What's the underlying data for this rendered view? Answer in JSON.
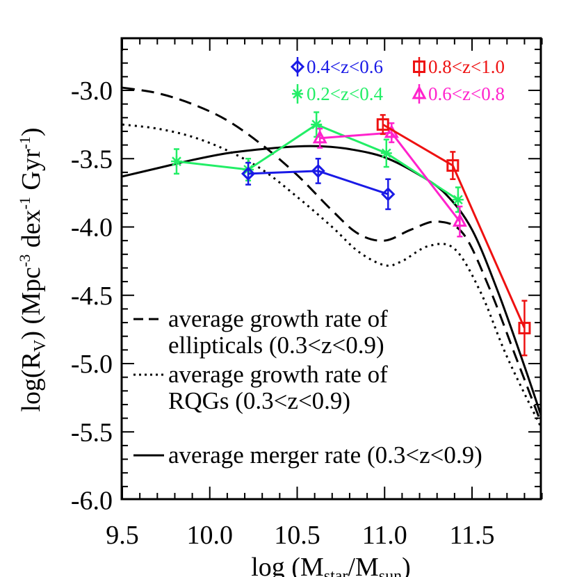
{
  "chart_data": {
    "type": "line",
    "title": "",
    "xlabel": {
      "main": "log (M",
      "sub1": "star",
      "mid": "/M",
      "sub2": "sun",
      "end": ")"
    },
    "ylabel": {
      "pre": "log(R",
      "sub": "V",
      "mid": ") (Mpc",
      "sup1": "-3",
      "mid2": " dex",
      "sup2": "-1",
      "mid3": " Gyr",
      "sup3": "-1",
      "end": ")"
    },
    "xlim": [
      9.5,
      11.9
    ],
    "ylim": [
      -6.05,
      -2.55
    ],
    "x_ticks": [
      9.5,
      10.0,
      10.5,
      11.0,
      11.5
    ],
    "x_tick_labels": [
      "9.5",
      "10.0",
      "10.5",
      "11.0",
      "11.5"
    ],
    "y_ticks": [
      -3.0,
      -3.5,
      -4.0,
      -4.5,
      -5.0,
      -5.5,
      -6.0
    ],
    "y_tick_labels": [
      "-3.0",
      "-3.5",
      "-4.0",
      "-4.5",
      "-5.0",
      "-5.5",
      "-6.0"
    ],
    "grid": false,
    "series": [
      {
        "name": "0.2<z<0.4",
        "color": "#22ee66",
        "marker": "asterisk",
        "x": [
          9.81,
          10.22,
          10.61,
          11.01,
          11.42
        ],
        "y": [
          -3.52,
          -3.58,
          -3.25,
          -3.46,
          -3.8
        ],
        "err": [
          0.09,
          0.08,
          0.09,
          0.1,
          0.09
        ]
      },
      {
        "name": "0.4<z<0.6",
        "color": "#1a1ae6",
        "marker": "diamond",
        "x": [
          10.22,
          10.62,
          11.02
        ],
        "y": [
          -3.61,
          -3.59,
          -3.76
        ],
        "err": [
          0.08,
          0.09,
          0.11
        ]
      },
      {
        "name": "0.6<z<0.8",
        "color": "#ff22cc",
        "marker": "triangle",
        "x": [
          10.63,
          11.04,
          11.43
        ],
        "y": [
          -3.35,
          -3.31,
          -3.96
        ],
        "err": [
          0.07,
          0.07,
          0.11
        ]
      },
      {
        "name": "0.8<z<1.0",
        "color": "#ee1111",
        "marker": "square",
        "x": [
          10.99,
          11.39,
          11.8
        ],
        "y": [
          -3.25,
          -3.55,
          -4.74
        ],
        "err": [
          0.07,
          0.1,
          0.2
        ]
      }
    ],
    "model_curves": [
      {
        "name": "average growth rate of ellipticals (0.3<z<0.9)",
        "style": "dashed",
        "x": [
          9.5,
          9.7,
          9.9,
          10.1,
          10.3,
          10.5,
          10.7,
          10.85,
          11.0,
          11.15,
          11.3,
          11.45,
          11.6,
          11.75,
          11.9
        ],
        "y": [
          -2.98,
          -3.02,
          -3.1,
          -3.22,
          -3.4,
          -3.62,
          -3.88,
          -4.05,
          -4.1,
          -4.02,
          -3.96,
          -4.05,
          -4.45,
          -4.95,
          -5.45
        ]
      },
      {
        "name": "average growth rate of RQGs (0.3<z<0.9)",
        "style": "dotted",
        "x": [
          9.5,
          9.7,
          9.9,
          10.1,
          10.3,
          10.5,
          10.7,
          10.85,
          11.0,
          11.1,
          11.25,
          11.4,
          11.55,
          11.7,
          11.9
        ],
        "y": [
          -3.25,
          -3.28,
          -3.34,
          -3.44,
          -3.58,
          -3.78,
          -4.0,
          -4.18,
          -4.28,
          -4.25,
          -4.14,
          -4.16,
          -4.48,
          -4.95,
          -5.48
        ]
      },
      {
        "name": "average merger rate (0.3<z<0.9)",
        "style": "solid",
        "x": [
          9.5,
          9.7,
          9.9,
          10.1,
          10.3,
          10.5,
          10.65,
          10.8,
          11.0,
          11.2,
          11.35,
          11.5,
          11.65,
          11.8,
          11.9
        ],
        "y": [
          -3.63,
          -3.57,
          -3.51,
          -3.46,
          -3.43,
          -3.41,
          -3.41,
          -3.43,
          -3.49,
          -3.62,
          -3.76,
          -4.02,
          -4.48,
          -5.02,
          -5.4
        ]
      }
    ],
    "legend": {
      "placement": "top-right",
      "entries": [
        "0.4<z<0.6",
        "0.8<z<1.0",
        "0.2<z<0.4",
        "0.6<z<0.8"
      ]
    },
    "curve_legend": {
      "placement": "bottom-left",
      "lines": [
        {
          "style": "dashed",
          "text1": "average growth rate of",
          "text2": "ellipticals (0.3<z<0.9)"
        },
        {
          "style": "dotted",
          "text1": "average growth rate of",
          "text2": "RQGs (0.3<z<0.9)"
        },
        {
          "style": "solid",
          "text1": "average merger rate (0.3<z<0.9)",
          "text2": ""
        }
      ]
    }
  }
}
